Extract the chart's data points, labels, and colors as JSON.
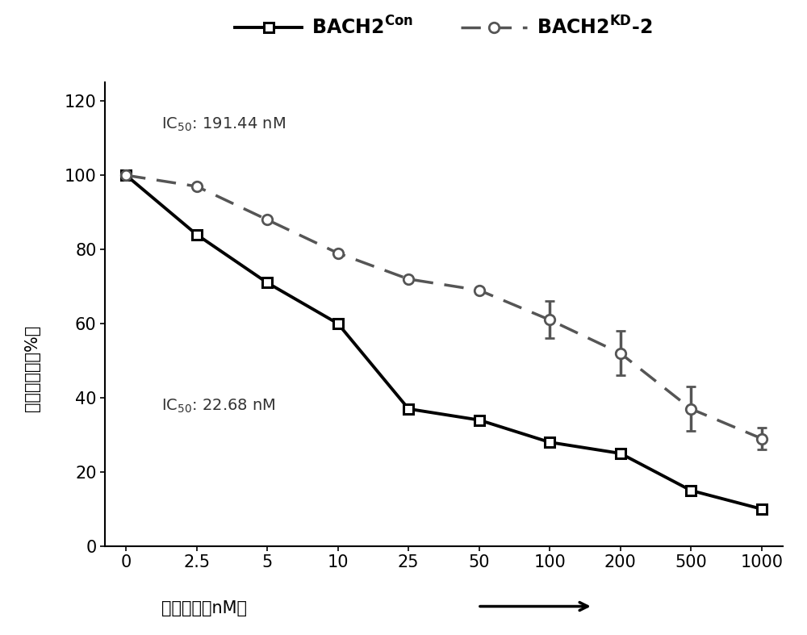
{
  "x_labels": [
    "0",
    "2.5",
    "5",
    "10",
    "25",
    "50",
    "100",
    "200",
    "500",
    "1000"
  ],
  "x_positions": [
    0,
    1,
    2,
    3,
    4,
    5,
    6,
    7,
    8,
    9
  ],
  "bach2con_y": [
    100,
    84,
    71,
    60,
    37,
    34,
    28,
    25,
    15,
    10
  ],
  "bach2kd_y": [
    100,
    97,
    88,
    79,
    72,
    69,
    61,
    52,
    37,
    29
  ],
  "bach2con_yerr": [
    0,
    0,
    0,
    0,
    0,
    0,
    0,
    0,
    0,
    0
  ],
  "bach2kd_yerr": [
    0,
    0,
    0,
    0,
    0,
    0,
    5,
    6,
    6,
    3
  ],
  "ic50_kd_text": "191.44 nM",
  "ic50_con_text": "22.68 nM",
  "ylabel": "细胞存活率（%）",
  "xlabel": "药物浓度（nM）",
  "ylim": [
    0,
    125
  ],
  "yticks": [
    0,
    20,
    40,
    60,
    80,
    100,
    120
  ],
  "background_color": "#ffffff",
  "line_color_con": "#000000",
  "line_color_kd": "#555555",
  "tick_fontsize": 15,
  "label_fontsize": 15,
  "ic50_fontsize": 14,
  "legend_fontsize": 17
}
